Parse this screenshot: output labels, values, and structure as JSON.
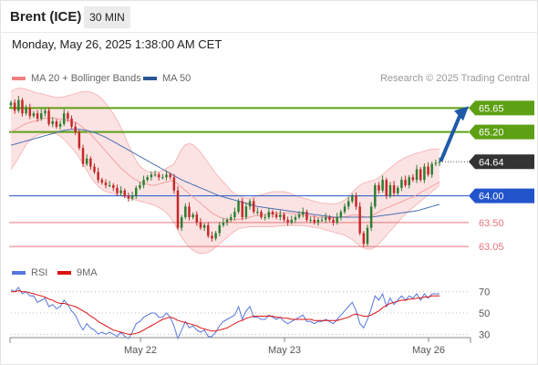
{
  "header": {
    "title": "Brent (ICE)",
    "interval": "30 MIN"
  },
  "datetime": "Monday, May 26, 2025 1:38:00 AM CET",
  "legend": {
    "bollinger": {
      "label": "MA 20 + Bollinger Bands",
      "color": "#f08080"
    },
    "ma50": {
      "label": "MA 50",
      "color": "#2c5597"
    },
    "rsi": {
      "label": "RSI",
      "color": "#5577dd"
    },
    "rsi_ma": {
      "label": "9MA",
      "color": "#dd1111"
    }
  },
  "source": "Research © 2025 Trading Central",
  "colors": {
    "up": "#2e7d32",
    "down": "#c62828",
    "resistance": "#5da013",
    "pivot": "#2255cc",
    "support": "#e9737c",
    "current": "#333333",
    "arrow": "#1f5aa8"
  },
  "chart_data": [
    {
      "type": "candlestick",
      "title": "Brent (ICE)",
      "interval": "30 MIN",
      "ylim": [
        62.88,
        66.05
      ],
      "x_ticks": [
        "May 22",
        "May 23",
        "May 26"
      ],
      "levels": [
        {
          "value": 65.65,
          "label": "65.65",
          "kind": "resistance"
        },
        {
          "value": 65.2,
          "label": "65.20",
          "kind": "resistance"
        },
        {
          "value": 64.64,
          "label": "64.64",
          "kind": "current"
        },
        {
          "value": 64.0,
          "label": "64.00",
          "kind": "pivot"
        },
        {
          "value": 63.5,
          "label": "63.50",
          "kind": "support"
        },
        {
          "value": 63.05,
          "label": "63.05",
          "kind": "support"
        }
      ],
      "close": [
        65.75,
        65.6,
        65.8,
        65.55,
        65.65,
        65.5,
        65.55,
        65.45,
        65.55,
        65.6,
        65.35,
        65.4,
        65.3,
        65.35,
        65.55,
        65.45,
        65.3,
        65.2,
        64.9,
        64.6,
        64.7,
        64.55,
        64.45,
        64.3,
        64.25,
        64.2,
        64.2,
        64.15,
        64.05,
        64.1,
        64.0,
        63.95,
        64.0,
        64.15,
        64.2,
        64.3,
        64.35,
        64.4,
        64.4,
        64.35,
        64.35,
        64.4,
        64.35,
        64.1,
        63.4,
        63.6,
        63.8,
        63.6,
        63.65,
        63.5,
        63.4,
        63.45,
        63.25,
        63.2,
        63.3,
        63.45,
        63.5,
        63.55,
        63.6,
        63.7,
        63.9,
        63.6,
        63.8,
        63.9,
        63.7,
        63.7,
        63.6,
        63.6,
        63.7,
        63.65,
        63.6,
        63.65,
        63.55,
        63.5,
        63.55,
        63.6,
        63.65,
        63.7,
        63.55,
        63.55,
        63.5,
        63.55,
        63.55,
        63.6,
        63.55,
        63.5,
        63.6,
        63.7,
        63.8,
        63.9,
        64.0,
        63.8,
        63.3,
        63.1,
        63.4,
        63.8,
        64.2,
        64.1,
        64.3,
        64.0,
        64.2,
        64.05,
        64.15,
        64.3,
        64.2,
        64.35,
        64.3,
        64.5,
        64.3,
        64.55,
        64.4,
        64.6,
        64.62,
        64.64
      ],
      "ma20": [
        65.2,
        65.24,
        65.28,
        65.32,
        65.36,
        65.38,
        65.4,
        65.42,
        65.44,
        65.46,
        65.46,
        65.46,
        65.45,
        65.44,
        65.43,
        65.42,
        65.4,
        65.38,
        65.34,
        65.28,
        65.22,
        65.16,
        65.08,
        65.0,
        64.92,
        64.84,
        64.76,
        64.68,
        64.6,
        64.52,
        64.46,
        64.4,
        64.34,
        64.3,
        64.26,
        64.24,
        64.22,
        64.2,
        64.2,
        64.22,
        64.24,
        64.26,
        64.28,
        64.28,
        64.22,
        64.16,
        64.1,
        64.04,
        63.98,
        63.92,
        63.86,
        63.8,
        63.74,
        63.68,
        63.64,
        63.6,
        63.58,
        63.56,
        63.55,
        63.55,
        63.56,
        63.57,
        63.58,
        63.6,
        63.62,
        63.63,
        63.64,
        63.65,
        63.66,
        63.67,
        63.67,
        63.68,
        63.68,
        63.68,
        63.67,
        63.66,
        63.65,
        63.64,
        63.63,
        63.62,
        63.61,
        63.6,
        63.6,
        63.6,
        63.59,
        63.59,
        63.59,
        63.6,
        63.61,
        63.62,
        63.64,
        63.64,
        63.63,
        63.61,
        63.6,
        63.62,
        63.66,
        63.7,
        63.74,
        63.77,
        63.8,
        63.83,
        63.86,
        63.89,
        63.92,
        63.95,
        63.98,
        64.02,
        64.06,
        64.1,
        64.14,
        64.18,
        64.22,
        64.26
      ],
      "bb_upper": [
        65.95,
        66.0,
        66.02,
        66.02,
        66.0,
        65.98,
        65.95,
        65.93,
        65.92,
        65.9,
        65.88,
        65.86,
        65.85,
        65.85,
        65.86,
        65.88,
        65.9,
        65.92,
        65.94,
        65.96,
        65.96,
        65.95,
        65.92,
        65.88,
        65.82,
        65.74,
        65.64,
        65.54,
        65.42,
        65.28,
        65.12,
        64.96,
        64.8,
        64.66,
        64.56,
        64.5,
        64.46,
        64.44,
        64.44,
        64.45,
        64.48,
        64.52,
        64.56,
        64.6,
        64.74,
        64.88,
        64.96,
        64.98,
        64.96,
        64.9,
        64.82,
        64.72,
        64.62,
        64.52,
        64.42,
        64.34,
        64.26,
        64.18,
        64.1,
        64.04,
        64.0,
        63.98,
        63.96,
        63.96,
        63.98,
        64.0,
        64.02,
        64.04,
        64.06,
        64.08,
        64.08,
        64.08,
        64.08,
        64.06,
        64.04,
        64.01,
        63.98,
        63.96,
        63.94,
        63.92,
        63.9,
        63.88,
        63.86,
        63.86,
        63.85,
        63.85,
        63.86,
        63.88,
        63.92,
        63.98,
        64.06,
        64.14,
        64.2,
        64.24,
        64.26,
        64.28,
        64.3,
        64.34,
        64.4,
        64.46,
        64.52,
        64.58,
        64.64,
        64.68,
        64.72,
        64.75,
        64.78,
        64.8,
        64.82,
        64.84,
        64.86,
        64.88,
        64.88,
        64.88
      ],
      "bb_lower": [
        64.5,
        64.6,
        64.72,
        64.84,
        64.96,
        65.04,
        65.1,
        65.14,
        65.16,
        65.18,
        65.18,
        65.18,
        65.16,
        65.12,
        65.06,
        64.98,
        64.9,
        64.82,
        64.72,
        64.6,
        64.48,
        64.36,
        64.26,
        64.18,
        64.12,
        64.08,
        64.06,
        64.04,
        64.02,
        64.0,
        63.98,
        63.96,
        63.94,
        63.92,
        63.9,
        63.88,
        63.86,
        63.84,
        63.82,
        63.78,
        63.74,
        63.68,
        63.6,
        63.5,
        63.36,
        63.22,
        63.12,
        63.04,
        62.98,
        62.94,
        62.92,
        62.92,
        62.94,
        62.98,
        63.04,
        63.1,
        63.16,
        63.22,
        63.28,
        63.34,
        63.38,
        63.4,
        63.41,
        63.42,
        63.42,
        63.42,
        63.42,
        63.42,
        63.42,
        63.42,
        63.43,
        63.43,
        63.44,
        63.44,
        63.44,
        63.44,
        63.44,
        63.44,
        63.43,
        63.42,
        63.41,
        63.4,
        63.38,
        63.36,
        63.34,
        63.32,
        63.3,
        63.28,
        63.26,
        63.22,
        63.18,
        63.12,
        63.06,
        63.02,
        63.0,
        63.0,
        63.04,
        63.1,
        63.18,
        63.26,
        63.34,
        63.42,
        63.5,
        63.58,
        63.66,
        63.72,
        63.78,
        63.84,
        63.9,
        63.96,
        64.02,
        64.08,
        64.14,
        64.2
      ],
      "ma50": [
        64.95,
        64.97,
        64.99,
        65.01,
        65.03,
        65.05,
        65.07,
        65.09,
        65.11,
        65.13,
        65.15,
        65.17,
        65.19,
        65.21,
        65.23,
        65.24,
        65.25,
        65.25,
        65.25,
        65.24,
        65.23,
        65.21,
        65.19,
        65.16,
        65.13,
        65.1,
        65.06,
        65.02,
        64.98,
        64.94,
        64.9,
        64.86,
        64.82,
        64.78,
        64.74,
        64.7,
        64.66,
        64.62,
        64.58,
        64.54,
        64.5,
        64.46,
        64.42,
        64.38,
        64.34,
        64.3,
        64.27,
        64.24,
        64.21,
        64.18,
        64.15,
        64.12,
        64.09,
        64.06,
        64.03,
        64.0,
        63.98,
        63.96,
        63.94,
        63.92,
        63.9,
        63.88,
        63.86,
        63.84,
        63.82,
        63.8,
        63.79,
        63.78,
        63.77,
        63.76,
        63.75,
        63.74,
        63.73,
        63.72,
        63.71,
        63.7,
        63.69,
        63.68,
        63.67,
        63.66,
        63.65,
        63.64,
        63.63,
        63.62,
        63.61,
        63.6,
        63.6,
        63.6,
        63.6,
        63.6,
        63.6,
        63.6,
        63.6,
        63.6,
        63.6,
        63.6,
        63.61,
        63.62,
        63.63,
        63.64,
        63.65,
        63.66,
        63.67,
        63.68,
        63.69,
        63.7,
        63.71,
        63.72,
        63.74,
        63.76,
        63.78,
        63.8,
        63.82,
        63.84
      ]
    },
    {
      "type": "line",
      "title": "RSI",
      "ylim": [
        20,
        80
      ],
      "y_ticks": [
        30,
        50,
        70
      ],
      "series": [
        {
          "name": "RSI",
          "values": [
            72,
            70,
            74,
            68,
            70,
            66,
            66,
            60,
            62,
            64,
            56,
            58,
            54,
            56,
            62,
            58,
            52,
            48,
            40,
            34,
            40,
            36,
            34,
            30,
            32,
            30,
            32,
            30,
            28,
            32,
            28,
            26,
            32,
            40,
            42,
            46,
            48,
            50,
            50,
            46,
            46,
            50,
            46,
            38,
            26,
            34,
            42,
            36,
            38,
            34,
            32,
            34,
            28,
            28,
            32,
            38,
            42,
            44,
            46,
            48,
            56,
            44,
            52,
            56,
            46,
            46,
            44,
            44,
            48,
            46,
            44,
            46,
            42,
            40,
            42,
            44,
            46,
            48,
            42,
            42,
            40,
            42,
            42,
            44,
            42,
            40,
            44,
            48,
            52,
            56,
            60,
            52,
            40,
            36,
            44,
            54,
            66,
            62,
            68,
            56,
            64,
            58,
            62,
            66,
            62,
            66,
            64,
            68,
            62,
            68,
            64,
            68,
            68,
            68
          ]
        },
        {
          "name": "9MA",
          "values": [
            70,
            70,
            71,
            70,
            70,
            69,
            68,
            67,
            66,
            65,
            63,
            62,
            60,
            59,
            59,
            58,
            57,
            56,
            54,
            52,
            50,
            47,
            45,
            42,
            40,
            38,
            36,
            34,
            33,
            32,
            31,
            30,
            30,
            31,
            32,
            34,
            36,
            38,
            40,
            42,
            44,
            45,
            46,
            45,
            43,
            42,
            41,
            40,
            39,
            38,
            36,
            35,
            34,
            33,
            33,
            34,
            35,
            36,
            38,
            40,
            42,
            43,
            45,
            46,
            47,
            47,
            47,
            47,
            47,
            47,
            46,
            46,
            45,
            45,
            44,
            44,
            44,
            44,
            44,
            44,
            43,
            43,
            43,
            43,
            43,
            43,
            43,
            44,
            45,
            46,
            48,
            49,
            48,
            47,
            47,
            48,
            50,
            52,
            55,
            57,
            59,
            60,
            61,
            62,
            62,
            63,
            63,
            64,
            64,
            65,
            65,
            66,
            66,
            66
          ]
        }
      ]
    }
  ]
}
